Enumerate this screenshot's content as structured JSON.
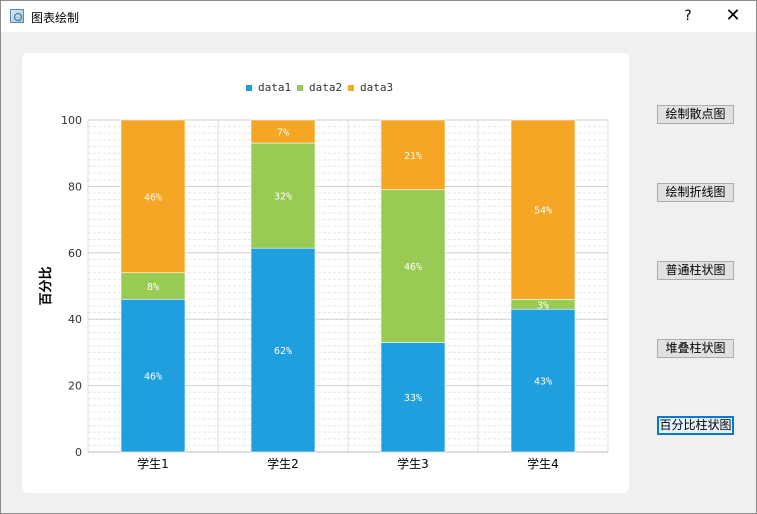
{
  "window": {
    "title": "图表绘制",
    "help_label": "?",
    "close_label": "✕",
    "icon": "chart-app-icon"
  },
  "buttons": [
    {
      "label": "绘制散点图"
    },
    {
      "label": "绘制折线图"
    },
    {
      "label": "普通柱状图"
    },
    {
      "label": "堆叠柱状图"
    },
    {
      "label": "百分比柱状图",
      "focused": true
    }
  ],
  "chart_data": {
    "type": "bar",
    "stacked": "percent",
    "categories": [
      "学生1",
      "学生2",
      "学生3",
      "学生4"
    ],
    "series": [
      {
        "name": "data1",
        "color": "#209fdf",
        "values": [
          46,
          62,
          33,
          43
        ],
        "labels": [
          "46%",
          "62%",
          "33%",
          "43%"
        ]
      },
      {
        "name": "data2",
        "color": "#99ca53",
        "values": [
          8,
          32,
          46,
          3
        ],
        "labels": [
          "8%",
          "32%",
          "46%",
          "3%"
        ]
      },
      {
        "name": "data3",
        "color": "#f6a625",
        "values": [
          46,
          7,
          21,
          54
        ],
        "labels": [
          "46%",
          "7%",
          "21%",
          "54%"
        ]
      }
    ],
    "ylabel": "百分比",
    "ylim": [
      0,
      100
    ],
    "yticks": [
      0,
      20,
      40,
      60,
      80,
      100
    ],
    "grid": true,
    "legend": "top-center"
  }
}
